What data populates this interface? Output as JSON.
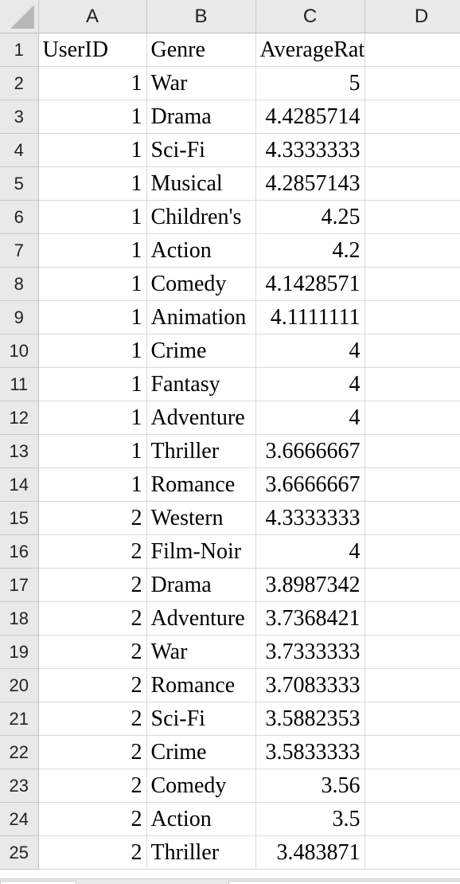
{
  "columns": [
    "A",
    "B",
    "C",
    "D"
  ],
  "header_row": {
    "row_number": "1",
    "cells": [
      "UserID",
      "Genre",
      "AverageRating",
      ""
    ]
  },
  "rows": [
    {
      "row_number": "2",
      "user_id": "1",
      "genre": "War",
      "average_rating": "5"
    },
    {
      "row_number": "3",
      "user_id": "1",
      "genre": "Drama",
      "average_rating": "4.4285714"
    },
    {
      "row_number": "4",
      "user_id": "1",
      "genre": "Sci-Fi",
      "average_rating": "4.3333333"
    },
    {
      "row_number": "5",
      "user_id": "1",
      "genre": "Musical",
      "average_rating": "4.2857143"
    },
    {
      "row_number": "6",
      "user_id": "1",
      "genre": "Children's",
      "average_rating": "4.25"
    },
    {
      "row_number": "7",
      "user_id": "1",
      "genre": "Action",
      "average_rating": "4.2"
    },
    {
      "row_number": "8",
      "user_id": "1",
      "genre": "Comedy",
      "average_rating": "4.1428571"
    },
    {
      "row_number": "9",
      "user_id": "1",
      "genre": "Animation",
      "average_rating": "4.1111111"
    },
    {
      "row_number": "10",
      "user_id": "1",
      "genre": "Crime",
      "average_rating": "4"
    },
    {
      "row_number": "11",
      "user_id": "1",
      "genre": "Fantasy",
      "average_rating": "4"
    },
    {
      "row_number": "12",
      "user_id": "1",
      "genre": "Adventure",
      "average_rating": "4"
    },
    {
      "row_number": "13",
      "user_id": "1",
      "genre": "Thriller",
      "average_rating": "3.6666667"
    },
    {
      "row_number": "14",
      "user_id": "1",
      "genre": "Romance",
      "average_rating": "3.6666667"
    },
    {
      "row_number": "15",
      "user_id": "2",
      "genre": "Western",
      "average_rating": "4.3333333"
    },
    {
      "row_number": "16",
      "user_id": "2",
      "genre": "Film-Noir",
      "average_rating": "4"
    },
    {
      "row_number": "17",
      "user_id": "2",
      "genre": "Drama",
      "average_rating": "3.8987342"
    },
    {
      "row_number": "18",
      "user_id": "2",
      "genre": "Adventure",
      "average_rating": "3.7368421"
    },
    {
      "row_number": "19",
      "user_id": "2",
      "genre": "War",
      "average_rating": "3.7333333"
    },
    {
      "row_number": "20",
      "user_id": "2",
      "genre": "Romance",
      "average_rating": "3.7083333"
    },
    {
      "row_number": "21",
      "user_id": "2",
      "genre": "Sci-Fi",
      "average_rating": "3.5882353"
    },
    {
      "row_number": "22",
      "user_id": "2",
      "genre": "Crime",
      "average_rating": "3.5833333"
    },
    {
      "row_number": "23",
      "user_id": "2",
      "genre": "Comedy",
      "average_rating": "3.56"
    },
    {
      "row_number": "24",
      "user_id": "2",
      "genre": "Action",
      "average_rating": "3.5"
    },
    {
      "row_number": "25",
      "user_id": "2",
      "genre": "Thriller",
      "average_rating": "3.483871"
    }
  ],
  "colors": {
    "header_background": "#e9e9e9",
    "gridline": "#dadada",
    "cell_background": "#ffffff"
  }
}
